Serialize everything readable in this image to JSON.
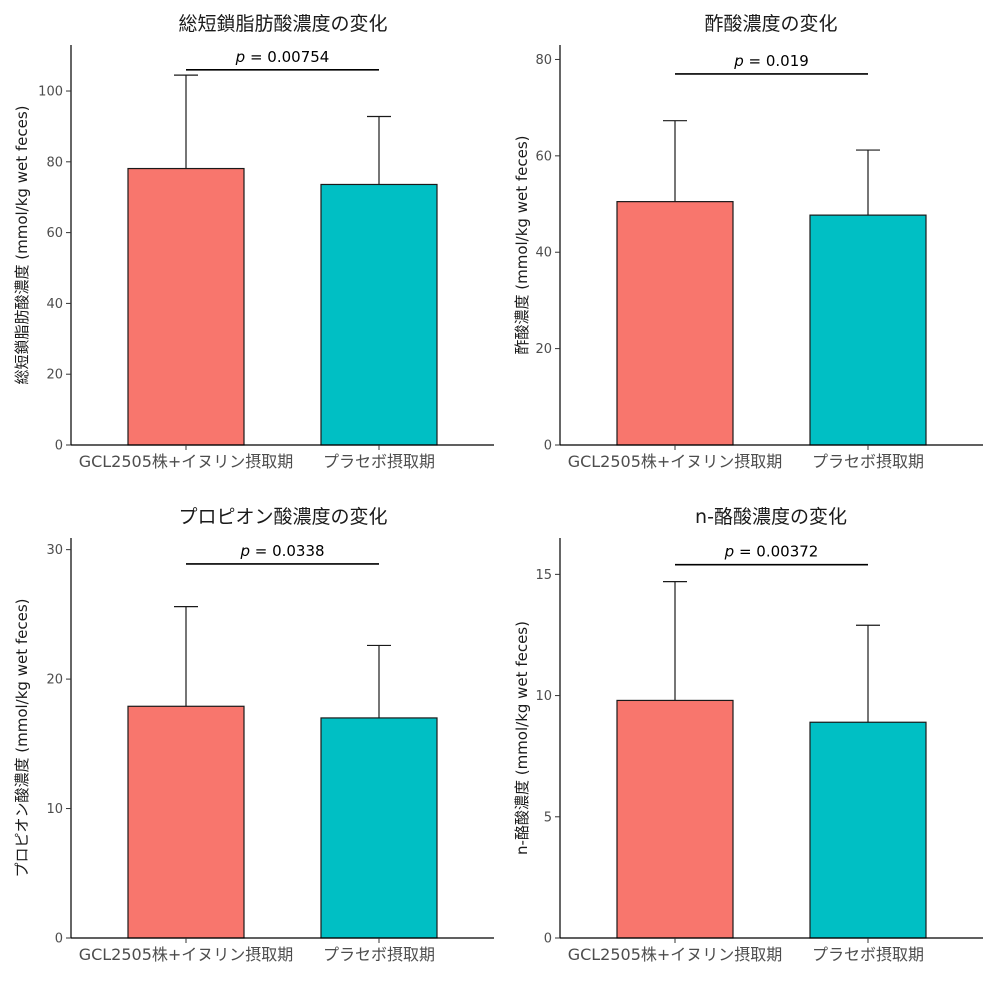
{
  "colors": {
    "group1": "#F8766D",
    "group2": "#00BFC4",
    "axis": "#000000"
  },
  "chart_data": [
    {
      "type": "bar",
      "title": "総短鎖脂肪酸濃度の変化",
      "ylabel": "総短鎖脂肪酸濃度 (mmol/kg wet feces)",
      "xlabel": "",
      "categories": [
        "GCL2505株+イヌリン摂取期",
        "プラセボ摂取期"
      ],
      "values": [
        78.1,
        73.6
      ],
      "error_upper": [
        104.5,
        92.8
      ],
      "ylim": [
        0,
        113
      ],
      "yticks": [
        0,
        20,
        40,
        60,
        80,
        100
      ],
      "bracket_y": 106,
      "p_label": "p",
      "p_value": " = 0.00754"
    },
    {
      "type": "bar",
      "title": "酢酸濃度の変化",
      "ylabel": "酢酸濃度 (mmol/kg wet feces)",
      "xlabel": "",
      "categories": [
        "GCL2505株+イヌリン摂取期",
        "プラセボ摂取期"
      ],
      "values": [
        50.5,
        47.7
      ],
      "error_upper": [
        67.3,
        61.2
      ],
      "ylim": [
        0,
        83
      ],
      "yticks": [
        0,
        20,
        40,
        60,
        80
      ],
      "bracket_y": 77,
      "p_label": "p",
      "p_value": " = 0.019"
    },
    {
      "type": "bar",
      "title": "プロピオン酸濃度の変化",
      "ylabel": "プロピオン酸濃度 (mmol/kg wet feces)",
      "xlabel": "",
      "categories": [
        "GCL2505株+イヌリン摂取期",
        "プラセボ摂取期"
      ],
      "values": [
        17.9,
        17.0
      ],
      "error_upper": [
        25.6,
        22.6
      ],
      "ylim": [
        0,
        30.9
      ],
      "yticks": [
        0,
        10,
        20,
        30
      ],
      "bracket_y": 28.9,
      "p_label": "p",
      "p_value": " = 0.0338"
    },
    {
      "type": "bar",
      "title": "n-酪酸濃度の変化",
      "ylabel": "n-酪酸濃度 (mmol/kg wet feces)",
      "xlabel": "",
      "categories": [
        "GCL2505株+イヌリン摂取期",
        "プラセボ摂取期"
      ],
      "values": [
        9.8,
        8.9
      ],
      "error_upper": [
        14.7,
        12.9
      ],
      "ylim": [
        0,
        16.5
      ],
      "yticks": [
        0,
        5,
        10,
        15
      ],
      "bracket_y": 15.4,
      "p_label": "p",
      "p_value": " = 0.00372"
    }
  ]
}
